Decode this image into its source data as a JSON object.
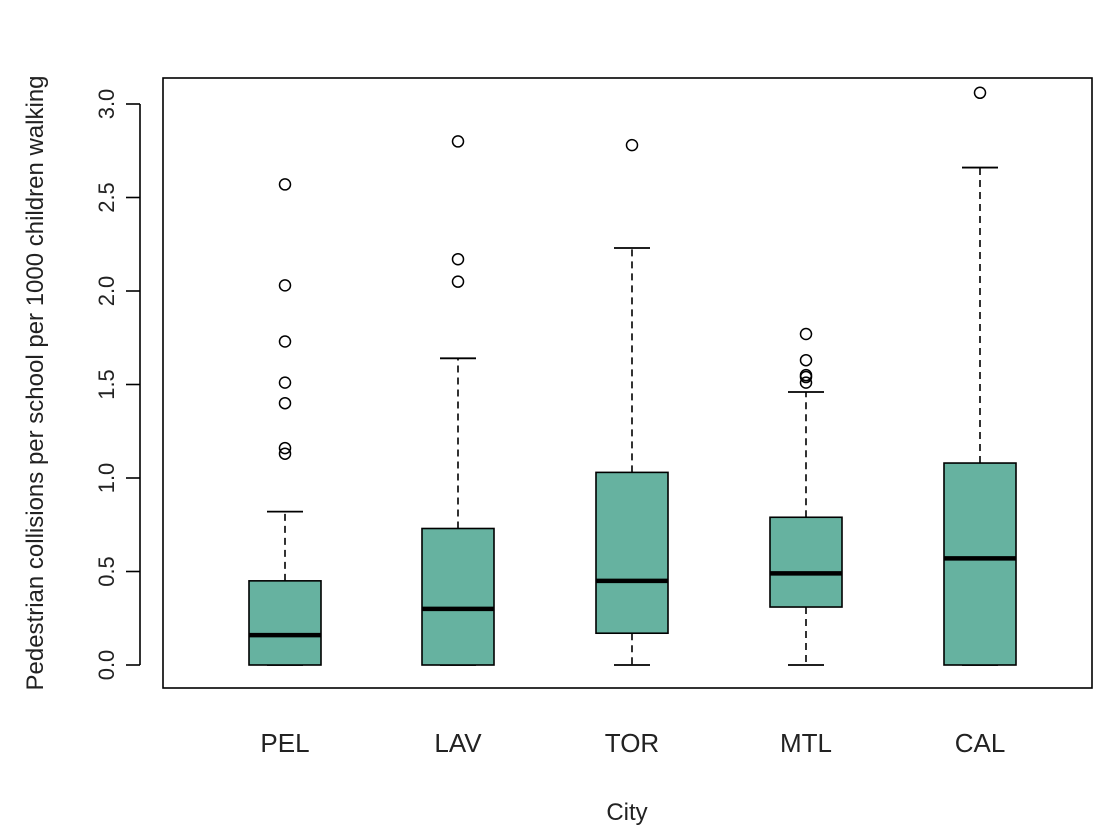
{
  "chart_data": {
    "type": "boxplot",
    "title": "",
    "xlabel": "City",
    "ylabel": "Pedestrian collisions per school per 1000 children walking",
    "ylim": [
      -0.13,
      3.12
    ],
    "yticks": [
      0.0,
      0.5,
      1.0,
      1.5,
      2.0,
      2.5,
      3.0
    ],
    "ytick_labels": [
      "0.0",
      "0.5",
      "1.0",
      "1.5",
      "2.0",
      "2.5",
      "3.0"
    ],
    "box_color": "#66b2a0",
    "categories": [
      "PEL",
      "LAV",
      "TOR",
      "MTL",
      "CAL"
    ],
    "boxes": [
      {
        "label": "PEL",
        "whisker_low": 0.0,
        "q1": 0.0,
        "median": 0.16,
        "q3": 0.45,
        "whisker_high": 0.82,
        "outliers": [
          1.13,
          1.16,
          1.4,
          1.51,
          1.73,
          2.03,
          2.57
        ]
      },
      {
        "label": "LAV",
        "whisker_low": 0.0,
        "q1": 0.0,
        "median": 0.3,
        "q3": 0.73,
        "whisker_high": 1.64,
        "outliers": [
          2.05,
          2.17,
          2.8
        ]
      },
      {
        "label": "TOR",
        "whisker_low": 0.0,
        "q1": 0.17,
        "median": 0.45,
        "q3": 1.03,
        "whisker_high": 2.23,
        "outliers": [
          2.78
        ]
      },
      {
        "label": "MTL",
        "whisker_low": 0.0,
        "q1": 0.31,
        "median": 0.49,
        "q3": 0.79,
        "whisker_high": 1.46,
        "outliers": [
          1.51,
          1.54,
          1.55,
          1.63,
          1.77
        ]
      },
      {
        "label": "CAL",
        "whisker_low": 0.0,
        "q1": 0.0,
        "median": 0.57,
        "q3": 1.08,
        "whisker_high": 2.66,
        "outliers": [
          3.06
        ]
      }
    ]
  }
}
